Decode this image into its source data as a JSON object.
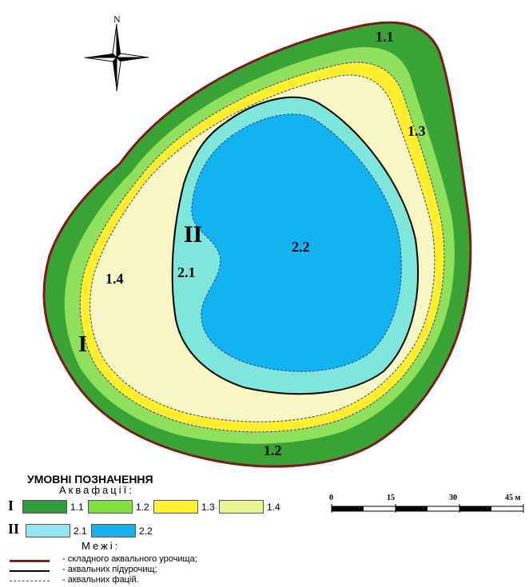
{
  "north_arrow": {
    "label": "N",
    "icon": "compass-rose-icon"
  },
  "zones": {
    "outer": {
      "label": "1.1",
      "color": "#3aa335"
    },
    "z12": {
      "label": "1.2",
      "color": "#8fe05c"
    },
    "z13": {
      "label": "1.3",
      "color": "#ffed2e"
    },
    "z14": {
      "label": "1.4",
      "color": "#f7f6c4"
    },
    "z21": {
      "label": "2.1",
      "color": "#7fe6dc"
    },
    "z22": {
      "label": "2.2",
      "color": "#13b3f0"
    }
  },
  "map_labels": {
    "l11": "1.1",
    "l12": "1.2",
    "l13": "1.3",
    "l14": "1.4",
    "l21": "2.1",
    "l22": "2.2",
    "roman_1": "I",
    "roman_2": "II"
  },
  "legend": {
    "title": "УМОВНІ ПОЗНАЧЕННЯ",
    "aquafacies_title": "Аквафації:",
    "group_1": {
      "roman": "I",
      "items": [
        {
          "label": "1.1",
          "color": "#2f9e3a"
        },
        {
          "label": "1.2",
          "color": "#7fe33a"
        },
        {
          "label": "1.3",
          "color": "#fff12e"
        },
        {
          "label": "1.4",
          "color": "#e8f58f"
        }
      ]
    },
    "group_2": {
      "roman": "II",
      "items": [
        {
          "label": "2.1",
          "color": "#93e6f2"
        },
        {
          "label": "2.2",
          "color": "#15b0ee"
        }
      ]
    },
    "boundaries_title": "Межі:",
    "lines": [
      {
        "text": "- складного аквального урочища;",
        "color": "#8b1a1a",
        "style": "solid"
      },
      {
        "text": "- аквальних підурочищ;",
        "color": "#000000",
        "style": "solid"
      },
      {
        "text": "- аквальних фацій.",
        "color": "#2a3f9e",
        "style": "dashed"
      }
    ]
  },
  "scale": {
    "ticks": [
      "0",
      "15",
      "30",
      "45 м"
    ]
  }
}
